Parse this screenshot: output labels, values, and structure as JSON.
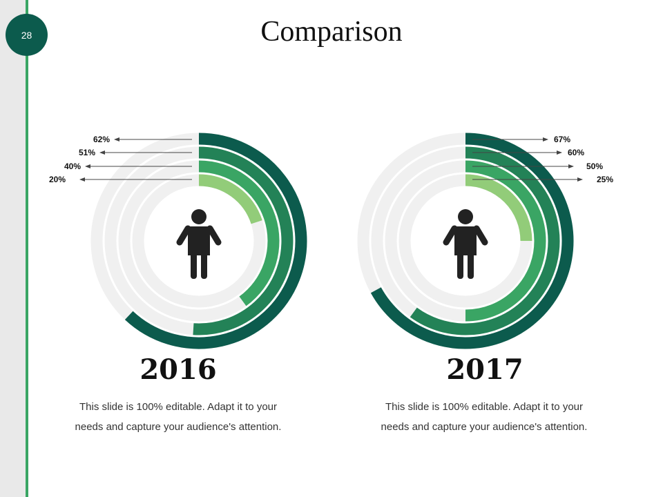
{
  "slide": {
    "page_number": "28",
    "title": "Comparison"
  },
  "chart_data": [
    {
      "type": "radial-bar",
      "title": "2016",
      "values": [
        62,
        51,
        40,
        20
      ],
      "labels": [
        "62%",
        "51%",
        "40%",
        "20%"
      ],
      "colors": [
        "#0c5b4d",
        "#238257",
        "#3aa564",
        "#92cc79"
      ],
      "track_color": "#f0f0f0",
      "label_side": "left",
      "description": "This slide is 100% editable. Adapt it to your needs and capture your audience's attention."
    },
    {
      "type": "radial-bar",
      "title": "2017",
      "values": [
        67,
        60,
        50,
        25
      ],
      "labels": [
        "67%",
        "60%",
        "50%",
        "25%"
      ],
      "colors": [
        "#0c5b4d",
        "#238257",
        "#3aa564",
        "#92cc79"
      ],
      "track_color": "#f0f0f0",
      "label_side": "right",
      "description": "This slide is 100% editable. Adapt it to your needs and capture your audience's attention."
    }
  ]
}
